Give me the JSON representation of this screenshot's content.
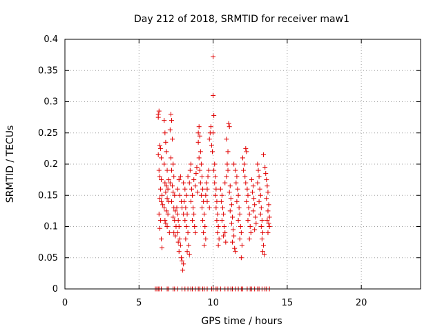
{
  "chart_data": {
    "type": "scatter",
    "title": "Day 212 of 2018, SRMTID for receiver maw1",
    "xlabel": "GPS time / hours",
    "ylabel": "SRMTID / TECUs",
    "xlim": [
      0,
      24
    ],
    "ylim": [
      0,
      0.4
    ],
    "xticks": [
      0,
      5,
      10,
      15,
      20
    ],
    "xtick_labels": [
      "0",
      "5",
      "10",
      "15",
      "20"
    ],
    "yticks": [
      0,
      0.05,
      0.1,
      0.15,
      0.2,
      0.25,
      0.3,
      0.35,
      0.4
    ],
    "ytick_labels": [
      "0",
      "0.05",
      "0.1",
      "0.15",
      "0.2",
      "0.25",
      "0.3",
      "0.35",
      "0.4"
    ],
    "grid": true,
    "marker": "+",
    "color": "#e00000",
    "series": [
      {
        "points": [
          [
            6.3,
            0.28
          ],
          [
            6.3,
            0.275
          ],
          [
            6.35,
            0.285
          ],
          [
            6.4,
            0.23
          ],
          [
            6.3,
            0.215
          ],
          [
            6.45,
            0.225
          ],
          [
            6.5,
            0.21
          ],
          [
            6.35,
            0.19
          ],
          [
            6.4,
            0.18
          ],
          [
            6.5,
            0.175
          ],
          [
            6.45,
            0.16
          ],
          [
            6.55,
            0.15
          ],
          [
            6.4,
            0.145
          ],
          [
            6.5,
            0.14
          ],
          [
            6.6,
            0.135
          ],
          [
            6.35,
            0.12
          ],
          [
            6.45,
            0.11
          ],
          [
            6.4,
            0.097
          ],
          [
            6.5,
            0.08
          ],
          [
            6.55,
            0.066
          ],
          [
            6.7,
            0.27
          ],
          [
            6.75,
            0.25
          ],
          [
            6.8,
            0.235
          ],
          [
            6.85,
            0.22
          ],
          [
            6.7,
            0.2
          ],
          [
            6.9,
            0.19
          ],
          [
            6.75,
            0.17
          ],
          [
            6.85,
            0.165
          ],
          [
            6.95,
            0.16
          ],
          [
            6.8,
            0.155
          ],
          [
            6.9,
            0.145
          ],
          [
            7.0,
            0.14
          ],
          [
            6.7,
            0.13
          ],
          [
            6.95,
            0.12
          ],
          [
            6.8,
            0.105
          ],
          [
            6.9,
            0.1
          ],
          [
            7.05,
            0.09
          ],
          [
            6.75,
            0.11
          ],
          [
            7.0,
            0.175
          ],
          [
            6.85,
            0.125
          ],
          [
            7.15,
            0.28
          ],
          [
            7.2,
            0.27
          ],
          [
            7.1,
            0.255
          ],
          [
            7.25,
            0.24
          ],
          [
            7.15,
            0.21
          ],
          [
            7.3,
            0.2
          ],
          [
            7.2,
            0.19
          ],
          [
            7.35,
            0.18
          ],
          [
            7.1,
            0.17
          ],
          [
            7.25,
            0.165
          ],
          [
            7.3,
            0.155
          ],
          [
            7.4,
            0.15
          ],
          [
            7.2,
            0.14
          ],
          [
            7.35,
            0.13
          ],
          [
            7.45,
            0.125
          ],
          [
            7.3,
            0.115
          ],
          [
            7.4,
            0.11
          ],
          [
            7.5,
            0.1
          ],
          [
            7.35,
            0.09
          ],
          [
            7.45,
            0.085
          ],
          [
            7.55,
            0.13
          ],
          [
            7.6,
            0.12
          ],
          [
            7.65,
            0.11
          ],
          [
            7.7,
            0.1
          ],
          [
            7.6,
            0.09
          ],
          [
            7.75,
            0.08
          ],
          [
            7.65,
            0.075
          ],
          [
            7.8,
            0.07
          ],
          [
            7.7,
            0.06
          ],
          [
            7.85,
            0.05
          ],
          [
            7.9,
            0.045
          ],
          [
            8.0,
            0.04
          ],
          [
            7.95,
            0.03
          ],
          [
            7.6,
            0.16
          ],
          [
            7.75,
            0.15
          ],
          [
            7.85,
            0.14
          ],
          [
            7.9,
            0.13
          ],
          [
            8.0,
            0.12
          ],
          [
            7.7,
            0.175
          ],
          [
            7.8,
            0.18
          ],
          [
            8.0,
            0.17
          ],
          [
            8.1,
            0.16
          ],
          [
            8.2,
            0.15
          ],
          [
            8.05,
            0.14
          ],
          [
            8.15,
            0.13
          ],
          [
            8.25,
            0.12
          ],
          [
            8.1,
            0.11
          ],
          [
            8.2,
            0.1
          ],
          [
            8.3,
            0.09
          ],
          [
            8.15,
            0.08
          ],
          [
            8.35,
            0.07
          ],
          [
            8.25,
            0.06
          ],
          [
            8.4,
            0.055
          ],
          [
            8.3,
            0.18
          ],
          [
            8.45,
            0.19
          ],
          [
            8.5,
            0.2
          ],
          [
            8.4,
            0.17
          ],
          [
            8.55,
            0.16
          ],
          [
            8.6,
            0.15
          ],
          [
            8.5,
            0.14
          ],
          [
            8.65,
            0.13
          ],
          [
            8.7,
            0.12
          ],
          [
            8.6,
            0.11
          ],
          [
            8.75,
            0.1
          ],
          [
            8.8,
            0.09
          ],
          [
            8.7,
            0.175
          ],
          [
            8.85,
            0.185
          ],
          [
            8.9,
            0.195
          ],
          [
            8.8,
            0.165
          ],
          [
            8.95,
            0.155
          ],
          [
            9.0,
            0.25
          ],
          [
            9.05,
            0.26
          ],
          [
            9.1,
            0.245
          ],
          [
            9.0,
            0.235
          ],
          [
            9.15,
            0.22
          ],
          [
            9.05,
            0.21
          ],
          [
            9.2,
            0.2
          ],
          [
            9.1,
            0.19
          ],
          [
            9.25,
            0.18
          ],
          [
            9.15,
            0.17
          ],
          [
            9.3,
            0.16
          ],
          [
            9.2,
            0.15
          ],
          [
            9.35,
            0.14
          ],
          [
            9.25,
            0.13
          ],
          [
            9.4,
            0.12
          ],
          [
            9.3,
            0.11
          ],
          [
            9.45,
            0.1
          ],
          [
            9.35,
            0.09
          ],
          [
            9.5,
            0.08
          ],
          [
            9.4,
            0.07
          ],
          [
            9.5,
            0.15
          ],
          [
            9.6,
            0.16
          ],
          [
            9.55,
            0.17
          ],
          [
            9.65,
            0.18
          ],
          [
            9.7,
            0.19
          ],
          [
            9.6,
            0.14
          ],
          [
            9.75,
            0.13
          ],
          [
            9.8,
            0.25
          ],
          [
            9.85,
            0.26
          ],
          [
            9.75,
            0.24
          ],
          [
            9.9,
            0.23
          ],
          [
            9.95,
            0.22
          ],
          [
            10.0,
            0.372
          ],
          [
            10.0,
            0.31
          ],
          [
            10.05,
            0.278
          ],
          [
            10.0,
            0.25
          ],
          [
            10.1,
            0.2
          ],
          [
            10.05,
            0.19
          ],
          [
            10.15,
            0.18
          ],
          [
            10.1,
            0.17
          ],
          [
            10.2,
            0.16
          ],
          [
            10.15,
            0.15
          ],
          [
            10.25,
            0.14
          ],
          [
            10.2,
            0.13
          ],
          [
            10.3,
            0.12
          ],
          [
            10.25,
            0.11
          ],
          [
            10.35,
            0.1
          ],
          [
            10.3,
            0.09
          ],
          [
            10.4,
            0.08
          ],
          [
            10.35,
            0.07
          ],
          [
            10.5,
            0.16
          ],
          [
            10.6,
            0.15
          ],
          [
            10.55,
            0.14
          ],
          [
            10.65,
            0.13
          ],
          [
            10.7,
            0.12
          ],
          [
            10.6,
            0.11
          ],
          [
            10.75,
            0.1
          ],
          [
            10.8,
            0.09
          ],
          [
            10.7,
            0.085
          ],
          [
            10.85,
            0.075
          ],
          [
            10.8,
            0.17
          ],
          [
            10.9,
            0.18
          ],
          [
            10.95,
            0.2
          ],
          [
            11.0,
            0.22
          ],
          [
            10.9,
            0.24
          ],
          [
            11.05,
            0.265
          ],
          [
            11.1,
            0.26
          ],
          [
            11.0,
            0.19
          ],
          [
            11.15,
            0.165
          ],
          [
            11.1,
            0.155
          ],
          [
            11.2,
            0.145
          ],
          [
            11.25,
            0.135
          ],
          [
            11.15,
            0.125
          ],
          [
            11.3,
            0.115
          ],
          [
            11.25,
            0.105
          ],
          [
            11.35,
            0.095
          ],
          [
            11.4,
            0.085
          ],
          [
            11.3,
            0.075
          ],
          [
            11.45,
            0.065
          ],
          [
            11.5,
            0.06
          ],
          [
            11.4,
            0.2
          ],
          [
            11.5,
            0.19
          ],
          [
            11.6,
            0.18
          ],
          [
            11.55,
            0.17
          ],
          [
            11.65,
            0.16
          ],
          [
            11.7,
            0.15
          ],
          [
            11.6,
            0.14
          ],
          [
            11.75,
            0.13
          ],
          [
            11.8,
            0.12
          ],
          [
            11.7,
            0.11
          ],
          [
            11.85,
            0.1
          ],
          [
            11.9,
            0.09
          ],
          [
            11.8,
            0.08
          ],
          [
            11.95,
            0.07
          ],
          [
            11.9,
            0.05
          ],
          [
            12.0,
            0.21
          ],
          [
            12.1,
            0.2
          ],
          [
            12.05,
            0.19
          ],
          [
            12.15,
            0.18
          ],
          [
            12.2,
            0.225
          ],
          [
            12.25,
            0.22
          ],
          [
            12.2,
            0.17
          ],
          [
            12.3,
            0.16
          ],
          [
            12.35,
            0.15
          ],
          [
            12.25,
            0.14
          ],
          [
            12.4,
            0.13
          ],
          [
            12.45,
            0.12
          ],
          [
            12.35,
            0.11
          ],
          [
            12.5,
            0.1
          ],
          [
            12.55,
            0.09
          ],
          [
            12.45,
            0.08
          ],
          [
            12.6,
            0.175
          ],
          [
            12.7,
            0.165
          ],
          [
            12.65,
            0.155
          ],
          [
            12.75,
            0.145
          ],
          [
            12.8,
            0.135
          ],
          [
            12.7,
            0.125
          ],
          [
            12.85,
            0.115
          ],
          [
            12.9,
            0.105
          ],
          [
            12.8,
            0.095
          ],
          [
            13.0,
            0.2
          ],
          [
            13.05,
            0.19
          ],
          [
            13.1,
            0.18
          ],
          [
            13.0,
            0.17
          ],
          [
            13.15,
            0.16
          ],
          [
            13.2,
            0.15
          ],
          [
            13.1,
            0.14
          ],
          [
            13.25,
            0.13
          ],
          [
            13.2,
            0.12
          ],
          [
            13.3,
            0.11
          ],
          [
            13.25,
            0.1
          ],
          [
            13.35,
            0.09
          ],
          [
            13.3,
            0.08
          ],
          [
            13.4,
            0.07
          ],
          [
            13.35,
            0.06
          ],
          [
            13.45,
            0.055
          ],
          [
            13.4,
            0.215
          ],
          [
            13.5,
            0.195
          ],
          [
            13.55,
            0.185
          ],
          [
            13.6,
            0.175
          ],
          [
            13.65,
            0.165
          ],
          [
            13.7,
            0.155
          ],
          [
            13.6,
            0.145
          ],
          [
            13.75,
            0.135
          ],
          [
            13.7,
            0.125
          ],
          [
            13.8,
            0.115
          ],
          [
            13.75,
            0.105
          ],
          [
            13.8,
            0.1
          ],
          [
            13.7,
            0.09
          ],
          [
            13.65,
            0.11
          ]
        ]
      },
      {
        "points": [
          [
            6.1,
            0
          ],
          [
            6.2,
            0
          ],
          [
            6.3,
            0
          ],
          [
            6.4,
            0
          ],
          [
            6.5,
            0
          ],
          [
            6.9,
            0
          ],
          [
            7.0,
            0
          ],
          [
            7.3,
            0
          ],
          [
            7.4,
            0
          ],
          [
            7.6,
            0
          ],
          [
            7.9,
            0
          ],
          [
            8.1,
            0
          ],
          [
            8.3,
            0
          ],
          [
            8.5,
            0
          ],
          [
            8.6,
            0
          ],
          [
            8.8,
            0
          ],
          [
            9.0,
            0
          ],
          [
            9.1,
            0
          ],
          [
            9.3,
            0
          ],
          [
            9.4,
            0
          ],
          [
            9.6,
            0
          ],
          [
            9.9,
            0
          ],
          [
            10.0,
            0
          ],
          [
            10.2,
            0
          ],
          [
            10.3,
            0
          ],
          [
            10.5,
            0
          ],
          [
            10.8,
            0
          ],
          [
            11.0,
            0
          ],
          [
            11.2,
            0
          ],
          [
            11.3,
            0
          ],
          [
            11.5,
            0
          ],
          [
            11.7,
            0
          ],
          [
            11.9,
            0
          ],
          [
            12.0,
            0
          ],
          [
            12.3,
            0
          ],
          [
            12.5,
            0
          ],
          [
            12.6,
            0
          ],
          [
            12.8,
            0
          ],
          [
            13.0,
            0
          ],
          [
            13.1,
            0
          ],
          [
            13.3,
            0
          ],
          [
            13.5,
            0
          ],
          [
            13.6,
            0
          ],
          [
            13.8,
            0
          ]
        ]
      }
    ]
  }
}
